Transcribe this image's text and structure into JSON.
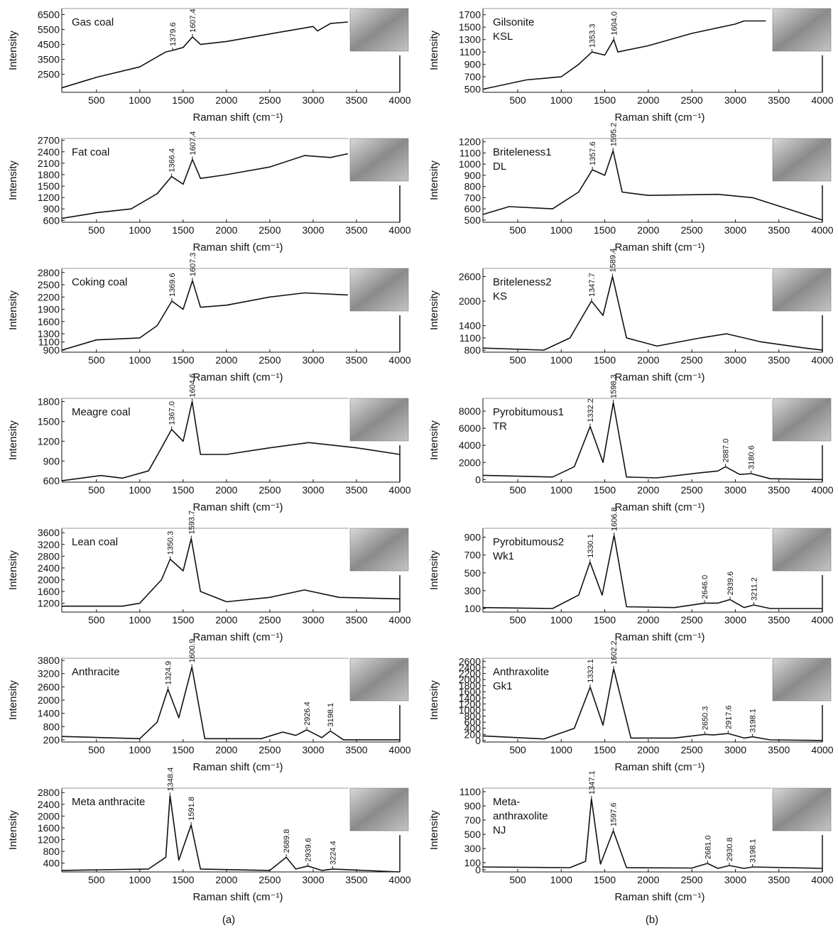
{
  "chart_data": [
    {
      "type": "line",
      "title_lines": [
        "Gas coal"
      ],
      "xlabel": "Raman shift (cm⁻¹)",
      "ylabel": "Intensity",
      "color": "#111111",
      "x": [
        100,
        500,
        1000,
        1300,
        1379.6,
        1500,
        1607.4,
        1700,
        2000,
        2500,
        3000,
        3050,
        3200,
        3400
      ],
      "values": [
        1600,
        2300,
        3000,
        4000,
        4100,
        4300,
        5000,
        4500,
        4700,
        5200,
        5700,
        5400,
        5900,
        6000
      ],
      "annotations": [
        {
          "value": 1379.6,
          "label": "1379.6"
        },
        {
          "value": 1607.4,
          "label": "1607.4"
        }
      ],
      "xlim": [
        100,
        4000
      ],
      "xticks": [
        500,
        1000,
        1500,
        2000,
        2500,
        3000,
        3500,
        4000
      ],
      "ylim": [
        1300,
        6900
      ],
      "yticks": [
        2500,
        3500,
        4500,
        5500,
        6500
      ]
    },
    {
      "type": "line",
      "title_lines": [
        "Fat coal"
      ],
      "xlabel": "Raman shift (cm⁻¹)",
      "ylabel": "Intensity",
      "color": "#111111",
      "x": [
        100,
        500,
        900,
        1200,
        1366.4,
        1500,
        1607.4,
        1700,
        2000,
        2500,
        2900,
        3200,
        3400
      ],
      "values": [
        650,
        800,
        900,
        1300,
        1750,
        1550,
        2200,
        1700,
        1800,
        2000,
        2300,
        2250,
        2350
      ],
      "annotations": [
        {
          "value": 1366.4,
          "label": "1366.4"
        },
        {
          "value": 1607.4,
          "label": "1607.4"
        }
      ],
      "xlim": [
        100,
        4000
      ],
      "xticks": [
        500,
        1000,
        1500,
        2000,
        2500,
        3000,
        3500,
        4000
      ],
      "ylim": [
        550,
        2750
      ],
      "yticks": [
        600,
        900,
        1200,
        1500,
        1800,
        2100,
        2400,
        2700
      ]
    },
    {
      "type": "line",
      "title_lines": [
        "Coking coal"
      ],
      "xlabel": "Raman shift (cm⁻¹)",
      "ylabel": "Intensity",
      "color": "#111111",
      "x": [
        100,
        500,
        1000,
        1200,
        1369.6,
        1500,
        1607.3,
        1700,
        2000,
        2500,
        2900,
        3400
      ],
      "values": [
        900,
        1150,
        1200,
        1500,
        2100,
        1900,
        2600,
        1950,
        2000,
        2200,
        2300,
        2250
      ],
      "annotations": [
        {
          "value": 1369.6,
          "label": "1369.6"
        },
        {
          "value": 1607.3,
          "label": "1607.3"
        }
      ],
      "xlim": [
        100,
        4000
      ],
      "xticks": [
        500,
        1000,
        1500,
        2000,
        2500,
        3000,
        3500,
        4000
      ],
      "ylim": [
        850,
        2900
      ],
      "yticks": [
        900,
        1100,
        1300,
        1600,
        1900,
        2200,
        2500,
        2800
      ]
    },
    {
      "type": "line",
      "title_lines": [
        "Meagre coal"
      ],
      "xlabel": "Raman shift (cm⁻¹)",
      "ylabel": "Intensity",
      "color": "#111111",
      "x": [
        100,
        550,
        800,
        1100,
        1250,
        1367.0,
        1500,
        1604.6,
        1700,
        2000,
        2500,
        2950,
        3500,
        4000
      ],
      "values": [
        600,
        680,
        640,
        750,
        1100,
        1380,
        1200,
        1800,
        1000,
        1000,
        1100,
        1180,
        1100,
        1000
      ],
      "annotations": [
        {
          "value": 1367.0,
          "label": "1367.0"
        },
        {
          "value": 1604.6,
          "label": "1604.6"
        }
      ],
      "xlim": [
        100,
        4000
      ],
      "xticks": [
        500,
        1000,
        1500,
        2000,
        2500,
        3000,
        3500,
        4000
      ],
      "ylim": [
        580,
        1850
      ],
      "yticks": [
        600,
        900,
        1200,
        1500,
        1800
      ]
    },
    {
      "type": "line",
      "title_lines": [
        "Lean coal"
      ],
      "xlabel": "Raman shift (cm⁻¹)",
      "ylabel": "Intensity",
      "color": "#111111",
      "x": [
        100,
        800,
        1000,
        1250,
        1350.3,
        1500,
        1593.7,
        1700,
        2000,
        2500,
        2900,
        3300,
        4000
      ],
      "values": [
        1100,
        1100,
        1200,
        2000,
        2700,
        2300,
        3400,
        1600,
        1250,
        1400,
        1650,
        1400,
        1350
      ],
      "annotations": [
        {
          "value": 1350.3,
          "label": "1350.3"
        },
        {
          "value": 1593.7,
          "label": "1593.7"
        }
      ],
      "xlim": [
        100,
        4000
      ],
      "xticks": [
        500,
        1000,
        1500,
        2000,
        2500,
        3000,
        3500,
        4000
      ],
      "ylim": [
        900,
        3750
      ],
      "yticks": [
        1200,
        1600,
        2000,
        2400,
        2800,
        3200,
        3600
      ]
    },
    {
      "type": "line",
      "title_lines": [
        "Anthracite"
      ],
      "xlabel": "Raman shift (cm⁻¹)",
      "ylabel": "Intensity",
      "color": "#111111",
      "x": [
        100,
        1000,
        1200,
        1324.9,
        1450,
        1600.9,
        1750,
        2400,
        2650,
        2800,
        2926.4,
        3100,
        3198.1,
        3350,
        4000
      ],
      "values": [
        350,
        250,
        1000,
        2500,
        1200,
        3500,
        250,
        250,
        550,
        400,
        650,
        300,
        600,
        200,
        200
      ],
      "annotations": [
        {
          "value": 1324.9,
          "label": "1324.9"
        },
        {
          "value": 1600.9,
          "label": "1600.9"
        },
        {
          "value": 2926.4,
          "label": "2926.4"
        },
        {
          "value": 3198.1,
          "label": "3198.1"
        }
      ],
      "xlim": [
        100,
        4000
      ],
      "xticks": [
        500,
        1000,
        1500,
        2000,
        2500,
        3000,
        3500,
        4000
      ],
      "ylim": [
        100,
        3900
      ],
      "yticks": [
        200,
        800,
        1400,
        2000,
        2600,
        3200,
        3800
      ]
    },
    {
      "type": "line",
      "title_lines": [
        "Meta anthracite"
      ],
      "xlabel": "Raman shift (cm⁻¹)",
      "ylabel": "Intensity",
      "color": "#111111",
      "x": [
        100,
        1100,
        1300,
        1348.4,
        1450,
        1591.8,
        1700,
        2500,
        2689.8,
        2800,
        2939.6,
        3100,
        3224.4,
        4000
      ],
      "values": [
        150,
        200,
        600,
        2700,
        500,
        1700,
        200,
        150,
        600,
        200,
        300,
        150,
        200,
        100
      ],
      "annotations": [
        {
          "value": 1348.4,
          "label": "1348.4"
        },
        {
          "value": 1591.8,
          "label": "1591.8"
        },
        {
          "value": 2689.8,
          "label": "2689.8"
        },
        {
          "value": 2939.6,
          "label": "2939.6"
        },
        {
          "value": 3224.4,
          "label": "3224.4"
        }
      ],
      "xlim": [
        100,
        4000
      ],
      "xticks": [
        500,
        1000,
        1500,
        2000,
        2500,
        3000,
        3500,
        4000
      ],
      "ylim": [
        100,
        2950
      ],
      "yticks": [
        400,
        800,
        1200,
        1600,
        2000,
        2400,
        2800
      ]
    },
    {
      "type": "line",
      "title_lines": [
        "Gilsonite",
        "KSL"
      ],
      "xlabel": "Raman shift (cm⁻¹)",
      "ylabel": "Intensity",
      "color": "#111111",
      "x": [
        100,
        600,
        1000,
        1200,
        1353.3,
        1500,
        1604.0,
        1650,
        2000,
        2500,
        3000,
        3100,
        3350
      ],
      "values": [
        500,
        650,
        700,
        900,
        1100,
        1050,
        1300,
        1100,
        1200,
        1400,
        1550,
        1600,
        1600
      ],
      "annotations": [
        {
          "value": 1353.3,
          "label": "1353.3"
        },
        {
          "value": 1604.0,
          "label": "1604.0"
        }
      ],
      "xlim": [
        100,
        4000
      ],
      "xticks": [
        500,
        1000,
        1500,
        2000,
        2500,
        3000,
        3500,
        4000
      ],
      "ylim": [
        450,
        1800
      ],
      "yticks": [
        500,
        700,
        900,
        1100,
        1300,
        1500,
        1700
      ]
    },
    {
      "type": "line",
      "title_lines": [
        "Briteleness1",
        "DL"
      ],
      "xlabel": "Raman shift (cm⁻¹)",
      "ylabel": "Intensity",
      "color": "#111111",
      "x": [
        100,
        400,
        900,
        1200,
        1357.6,
        1500,
        1595.2,
        1700,
        2000,
        2800,
        3200,
        3600,
        4000
      ],
      "values": [
        550,
        620,
        600,
        750,
        950,
        900,
        1120,
        750,
        720,
        730,
        700,
        600,
        500
      ],
      "annotations": [
        {
          "value": 1357.6,
          "label": "1357.6"
        },
        {
          "value": 1595.2,
          "label": "1595.2"
        }
      ],
      "xlim": [
        100,
        4000
      ],
      "xticks": [
        500,
        1000,
        1500,
        2000,
        2500,
        3000,
        3500,
        4000
      ],
      "ylim": [
        480,
        1230
      ],
      "yticks": [
        500,
        600,
        700,
        800,
        900,
        1000,
        1100,
        1200
      ]
    },
    {
      "type": "line",
      "title_lines": [
        "Briteleness2",
        "KS"
      ],
      "xlabel": "Raman shift (cm⁻¹)",
      "ylabel": "Intensity",
      "color": "#111111",
      "x": [
        100,
        800,
        1100,
        1347.7,
        1480,
        1589.4,
        1750,
        2100,
        2600,
        2900,
        3300,
        3800,
        4000
      ],
      "values": [
        850,
        800,
        1100,
        2000,
        1650,
        2600,
        1100,
        900,
        1100,
        1200,
        1000,
        850,
        800
      ],
      "annotations": [
        {
          "value": 1347.7,
          "label": "1347.7"
        },
        {
          "value": 1589.4,
          "label": "1589.4"
        }
      ],
      "xlim": [
        100,
        4000
      ],
      "xticks": [
        500,
        1000,
        1500,
        2000,
        2500,
        3000,
        3500,
        4000
      ],
      "ylim": [
        750,
        2800
      ],
      "yticks": [
        800,
        1100,
        1400,
        2000,
        2600
      ]
    },
    {
      "type": "line",
      "title_lines": [
        "Pyrobitumous1",
        "TR"
      ],
      "xlabel": "Raman shift (cm⁻¹)",
      "ylabel": "Intensity",
      "color": "#111111",
      "x": [
        100,
        900,
        1150,
        1332.2,
        1480,
        1598.3,
        1750,
        2100,
        2600,
        2800,
        2887.0,
        3050,
        3180.6,
        3400,
        4000
      ],
      "values": [
        500,
        300,
        1500,
        6200,
        2000,
        9000,
        300,
        200,
        800,
        1000,
        1500,
        600,
        700,
        100,
        0
      ],
      "annotations": [
        {
          "value": 1332.2,
          "label": "1332.2"
        },
        {
          "value": 1598.3,
          "label": "1598.3"
        },
        {
          "value": 2887.0,
          "label": "2887.0"
        },
        {
          "value": 3180.6,
          "label": "3180.6"
        }
      ],
      "xlim": [
        100,
        4000
      ],
      "xticks": [
        500,
        1000,
        1500,
        2000,
        2500,
        3000,
        3500,
        4000
      ],
      "ylim": [
        -300,
        9500
      ],
      "yticks": [
        0,
        2000,
        4000,
        6000,
        8000
      ]
    },
    {
      "type": "line",
      "title_lines": [
        "Pyrobitumous2",
        "Wk1"
      ],
      "xlabel": "Raman shift (cm⁻¹)",
      "ylabel": "Intensity",
      "color": "#111111",
      "x": [
        100,
        900,
        1200,
        1330.1,
        1470,
        1606.8,
        1750,
        2300,
        2646.0,
        2800,
        2939.6,
        3100,
        3211.2,
        3400,
        4000
      ],
      "values": [
        110,
        100,
        250,
        620,
        250,
        920,
        120,
        110,
        160,
        160,
        200,
        110,
        140,
        100,
        100
      ],
      "annotations": [
        {
          "value": 1330.1,
          "label": "1330.1"
        },
        {
          "value": 1606.8,
          "label": "1606.8"
        },
        {
          "value": 2646.0,
          "label": "2646.0"
        },
        {
          "value": 2939.6,
          "label": "2939.6"
        },
        {
          "value": 3211.2,
          "label": "3211.2"
        }
      ],
      "xlim": [
        100,
        4000
      ],
      "xticks": [
        500,
        1000,
        1500,
        2000,
        2500,
        3000,
        3500,
        4000
      ],
      "ylim": [
        60,
        1000
      ],
      "yticks": [
        100,
        300,
        500,
        700,
        900
      ]
    },
    {
      "type": "line",
      "title_lines": [
        "Anthraxolite",
        "Gk1"
      ],
      "xlabel": "Raman shift (cm⁻¹)",
      "ylabel": "Intensity",
      "color": "#111111",
      "x": [
        100,
        800,
        1150,
        1332.1,
        1480,
        1602.2,
        1800,
        2300,
        2650.3,
        2750,
        2917.6,
        3100,
        3198.1,
        3400,
        4000
      ],
      "values": [
        150,
        50,
        400,
        1750,
        500,
        2350,
        80,
        80,
        200,
        180,
        230,
        80,
        120,
        20,
        0
      ],
      "annotations": [
        {
          "value": 1332.1,
          "label": "1332.1"
        },
        {
          "value": 1602.2,
          "label": "1602.2"
        },
        {
          "value": 2650.3,
          "label": "2650.3"
        },
        {
          "value": 2917.6,
          "label": "2917.6"
        },
        {
          "value": 3198.1,
          "label": "3198.1"
        }
      ],
      "xlim": [
        100,
        4000
      ],
      "xticks": [
        500,
        1000,
        1500,
        2000,
        2500,
        3000,
        3500,
        4000
      ],
      "ylim": [
        -50,
        2700
      ],
      "yticks": [
        0,
        200,
        400,
        600,
        800,
        1000,
        1200,
        1400,
        1600,
        1800,
        2000,
        2200,
        2400,
        2600
      ]
    },
    {
      "type": "line",
      "title_lines": [
        "Meta-",
        "anthraxolite",
        "NJ"
      ],
      "xlabel": "Raman shift (cm⁻¹)",
      "ylabel": "Intensity",
      "color": "#111111",
      "x": [
        100,
        1100,
        1280,
        1347.1,
        1450,
        1597.6,
        1750,
        2500,
        2681.0,
        2800,
        2930.8,
        3100,
        3198.1,
        4000
      ],
      "values": [
        40,
        30,
        120,
        1000,
        80,
        550,
        30,
        25,
        90,
        20,
        60,
        20,
        40,
        20
      ],
      "annotations": [
        {
          "value": 1347.1,
          "label": "1347.1"
        },
        {
          "value": 1597.6,
          "label": "1597.6"
        },
        {
          "value": 2681.0,
          "label": "2681.0"
        },
        {
          "value": 2930.8,
          "label": "2930.8"
        },
        {
          "value": 3198.1,
          "label": "3198.1"
        }
      ],
      "xlim": [
        100,
        4000
      ],
      "xticks": [
        500,
        1000,
        1500,
        2000,
        2500,
        3000,
        3500,
        4000
      ],
      "ylim": [
        -30,
        1150
      ],
      "yticks": [
        0,
        100,
        300,
        500,
        700,
        900,
        1100
      ]
    }
  ],
  "panel_labels": [
    "(a)",
    "(b)"
  ]
}
